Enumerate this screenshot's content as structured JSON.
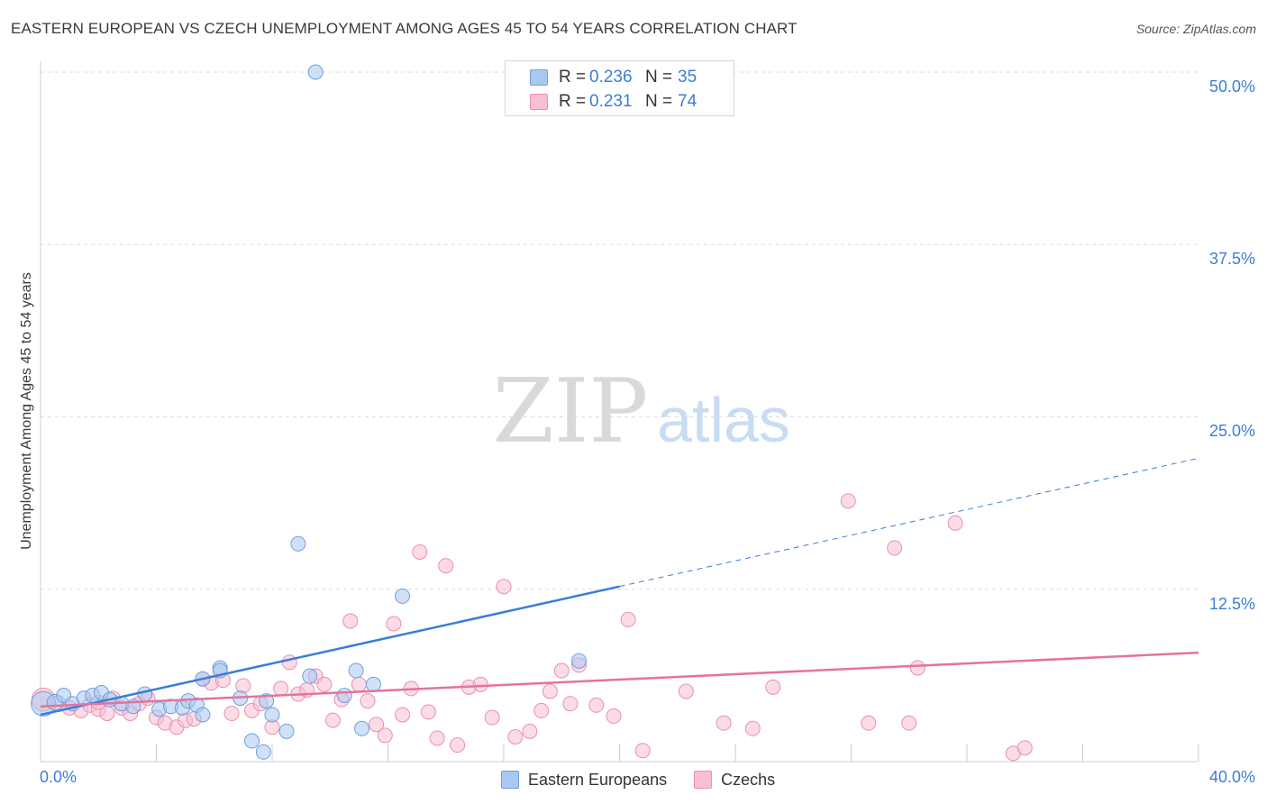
{
  "title": "EASTERN EUROPEAN VS CZECH UNEMPLOYMENT AMONG AGES 45 TO 54 YEARS CORRELATION CHART",
  "source": "Source: ZipAtlas.com",
  "watermark": {
    "zip": "ZIP",
    "atlas": "atlas"
  },
  "legend_top": {
    "rows": [
      {
        "r_label": "R =",
        "r_value": "0.236",
        "n_label": "N =",
        "n_value": "35",
        "color": "#a9c8f0",
        "border": "#6f9fdc"
      },
      {
        "r_label": "R =",
        "r_value": "0.231",
        "n_label": "N =",
        "n_value": "74",
        "color": "#f7bfd2",
        "border": "#e98fb0"
      }
    ]
  },
  "legend_bottom": [
    {
      "label": "Eastern Europeans",
      "color": "#a9c8f0",
      "border": "#6f9fdc"
    },
    {
      "label": "Czechs",
      "color": "#f7bfd2",
      "border": "#e98fb0"
    }
  ],
  "chart_data": {
    "type": "scatter",
    "title": "EASTERN EUROPEAN VS CZECH UNEMPLOYMENT AMONG AGES 45 TO 54 YEARS CORRELATION CHART",
    "xlabel": "",
    "ylabel": "Unemployment Among Ages 45 to 54 years",
    "xlim": [
      0,
      40
    ],
    "ylim": [
      0,
      50
    ],
    "x_tick_labels": [
      "0.0%",
      "40.0%"
    ],
    "y_ticks": [
      12.5,
      25.0,
      37.5,
      50.0
    ],
    "y_tick_labels": [
      "12.5%",
      "25.0%",
      "37.5%",
      "50.0%"
    ],
    "grid": true,
    "series": [
      {
        "name": "Eastern Europeans",
        "color": "#3b7dd8",
        "fill": "#a9c8f0",
        "stroke": "#6f9fdc",
        "points": [
          {
            "x": 0.1,
            "y": 4.2,
            "r": 1.7
          },
          {
            "x": 0.5,
            "y": 4.3,
            "r": 1.1
          },
          {
            "x": 0.8,
            "y": 4.8
          },
          {
            "x": 1.1,
            "y": 4.2
          },
          {
            "x": 1.5,
            "y": 4.6
          },
          {
            "x": 1.8,
            "y": 4.8
          },
          {
            "x": 2.1,
            "y": 5.0
          },
          {
            "x": 2.4,
            "y": 4.5
          },
          {
            "x": 2.8,
            "y": 4.2
          },
          {
            "x": 3.2,
            "y": 4.0
          },
          {
            "x": 3.6,
            "y": 4.9
          },
          {
            "x": 4.1,
            "y": 3.8
          },
          {
            "x": 4.5,
            "y": 4.0
          },
          {
            "x": 4.9,
            "y": 3.9
          },
          {
            "x": 5.1,
            "y": 4.4
          },
          {
            "x": 5.4,
            "y": 4.1
          },
          {
            "x": 5.6,
            "y": 3.4
          },
          {
            "x": 5.6,
            "y": 6.0
          },
          {
            "x": 6.2,
            "y": 6.8
          },
          {
            "x": 6.9,
            "y": 4.6
          },
          {
            "x": 7.3,
            "y": 1.5
          },
          {
            "x": 7.7,
            "y": 0.7
          },
          {
            "x": 7.8,
            "y": 4.4
          },
          {
            "x": 8.0,
            "y": 3.4
          },
          {
            "x": 8.5,
            "y": 2.2
          },
          {
            "x": 8.9,
            "y": 15.8
          },
          {
            "x": 9.3,
            "y": 6.2
          },
          {
            "x": 9.5,
            "y": 50.0
          },
          {
            "x": 10.5,
            "y": 4.8
          },
          {
            "x": 10.9,
            "y": 6.6
          },
          {
            "x": 11.1,
            "y": 2.4
          },
          {
            "x": 11.5,
            "y": 5.6
          },
          {
            "x": 12.5,
            "y": 12.0
          },
          {
            "x": 18.6,
            "y": 7.3
          },
          {
            "x": 6.2,
            "y": 6.6
          }
        ],
        "trend": {
          "x1": 0.0,
          "y1": 3.4,
          "x2": 20.0,
          "y2": 12.7,
          "dash_to_x": 40.0,
          "dash_to_y": 22.0
        }
      },
      {
        "name": "Czechs",
        "color": "#e5739b",
        "fill": "#f7bfd2",
        "stroke": "#e98fb0",
        "points": [
          {
            "x": 0.1,
            "y": 4.5,
            "r": 1.6
          },
          {
            "x": 0.6,
            "y": 4.2,
            "r": 1.1
          },
          {
            "x": 1.0,
            "y": 3.9
          },
          {
            "x": 1.4,
            "y": 3.7
          },
          {
            "x": 1.7,
            "y": 4.1
          },
          {
            "x": 2.0,
            "y": 3.8
          },
          {
            "x": 2.3,
            "y": 3.5
          },
          {
            "x": 2.5,
            "y": 4.6
          },
          {
            "x": 2.8,
            "y": 3.9
          },
          {
            "x": 3.1,
            "y": 3.5
          },
          {
            "x": 3.4,
            "y": 4.2
          },
          {
            "x": 3.7,
            "y": 4.6
          },
          {
            "x": 4.0,
            "y": 3.2
          },
          {
            "x": 4.3,
            "y": 2.8
          },
          {
            "x": 4.7,
            "y": 2.5
          },
          {
            "x": 5.0,
            "y": 3.0
          },
          {
            "x": 5.3,
            "y": 3.1
          },
          {
            "x": 5.6,
            "y": 6.0
          },
          {
            "x": 5.9,
            "y": 5.7
          },
          {
            "x": 6.3,
            "y": 5.9
          },
          {
            "x": 6.6,
            "y": 3.5
          },
          {
            "x": 7.0,
            "y": 5.5
          },
          {
            "x": 7.3,
            "y": 3.7
          },
          {
            "x": 7.6,
            "y": 4.2
          },
          {
            "x": 8.0,
            "y": 2.5
          },
          {
            "x": 8.3,
            "y": 5.3
          },
          {
            "x": 8.6,
            "y": 7.2
          },
          {
            "x": 8.9,
            "y": 4.9
          },
          {
            "x": 9.2,
            "y": 5.2
          },
          {
            "x": 9.5,
            "y": 6.2
          },
          {
            "x": 9.8,
            "y": 5.6
          },
          {
            "x": 10.1,
            "y": 3.0
          },
          {
            "x": 10.4,
            "y": 4.5
          },
          {
            "x": 10.7,
            "y": 10.2
          },
          {
            "x": 11.0,
            "y": 5.6
          },
          {
            "x": 11.3,
            "y": 4.4
          },
          {
            "x": 11.6,
            "y": 2.7
          },
          {
            "x": 11.9,
            "y": 1.9
          },
          {
            "x": 12.2,
            "y": 10.0
          },
          {
            "x": 12.5,
            "y": 3.4
          },
          {
            "x": 12.8,
            "y": 5.3
          },
          {
            "x": 13.1,
            "y": 15.2
          },
          {
            "x": 13.4,
            "y": 3.6
          },
          {
            "x": 13.7,
            "y": 1.7
          },
          {
            "x": 14.0,
            "y": 14.2
          },
          {
            "x": 14.4,
            "y": 1.2
          },
          {
            "x": 14.8,
            "y": 5.4
          },
          {
            "x": 15.2,
            "y": 5.6
          },
          {
            "x": 15.6,
            "y": 3.2
          },
          {
            "x": 16.0,
            "y": 12.7
          },
          {
            "x": 16.4,
            "y": 1.8
          },
          {
            "x": 16.9,
            "y": 2.2
          },
          {
            "x": 17.3,
            "y": 3.7
          },
          {
            "x": 17.6,
            "y": 5.1
          },
          {
            "x": 18.0,
            "y": 6.6
          },
          {
            "x": 18.3,
            "y": 4.2
          },
          {
            "x": 18.6,
            "y": 7.0
          },
          {
            "x": 19.2,
            "y": 4.1
          },
          {
            "x": 19.8,
            "y": 3.3
          },
          {
            "x": 20.3,
            "y": 10.3
          },
          {
            "x": 20.8,
            "y": 0.8
          },
          {
            "x": 22.3,
            "y": 5.1
          },
          {
            "x": 23.6,
            "y": 2.8
          },
          {
            "x": 24.6,
            "y": 2.4
          },
          {
            "x": 25.3,
            "y": 5.4
          },
          {
            "x": 27.9,
            "y": 18.9
          },
          {
            "x": 28.6,
            "y": 2.8
          },
          {
            "x": 29.5,
            "y": 15.5
          },
          {
            "x": 30.0,
            "y": 2.8
          },
          {
            "x": 30.3,
            "y": 6.8
          },
          {
            "x": 31.6,
            "y": 17.3
          },
          {
            "x": 33.6,
            "y": 0.6
          },
          {
            "x": 34.0,
            "y": 1.0
          },
          {
            "x": 2.0,
            "y": 4.3
          }
        ],
        "trend": {
          "x1": 0.0,
          "y1": 4.0,
          "x2": 40.0,
          "y2": 7.9
        }
      }
    ]
  }
}
